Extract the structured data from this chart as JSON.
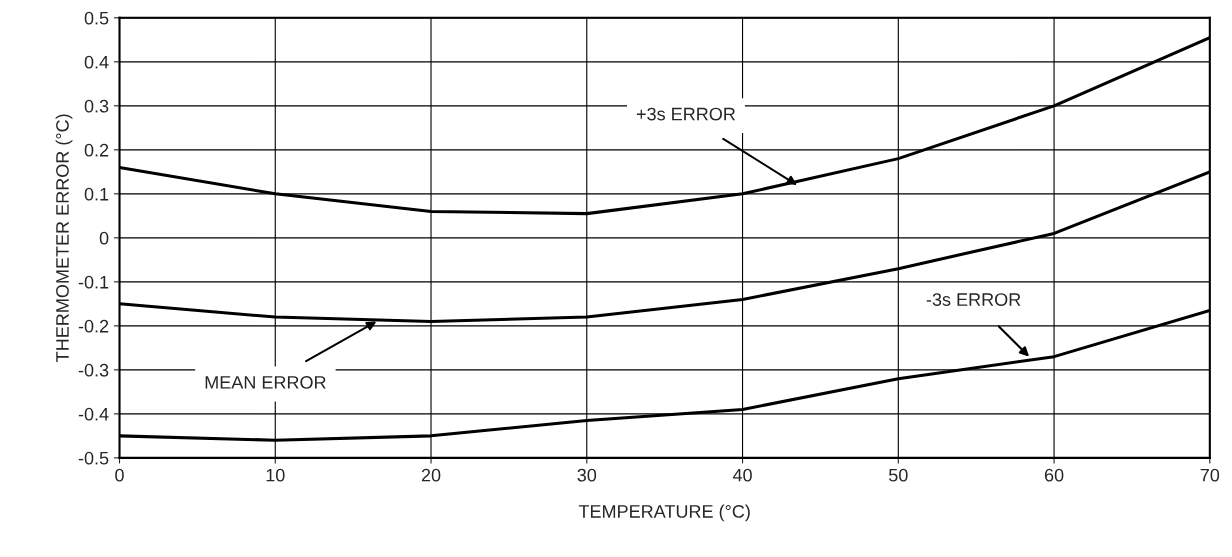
{
  "chart_data": {
    "type": "line",
    "xlabel": "TEMPERATURE (°C)",
    "ylabel": "THERMOMETER ERROR (°C)",
    "x": [
      0,
      10,
      20,
      30,
      40,
      50,
      60,
      70
    ],
    "series": [
      {
        "color": "#000000",
        "values": [
          0.16,
          0.1,
          0.06,
          0.055,
          0.1,
          0.18,
          0.3,
          0.455
        ]
      },
      {
        "color": "#000000",
        "values": [
          -0.15,
          -0.18,
          -0.19,
          -0.18,
          -0.14,
          -0.07,
          0.01,
          0.15
        ]
      },
      {
        "color": "#000000",
        "values": [
          -0.45,
          -0.46,
          -0.45,
          -0.415,
          -0.39,
          -0.32,
          -0.27,
          -0.165
        ]
      }
    ],
    "annotations": [
      {
        "text": "+3s ERROR",
        "x": 43.5,
        "y": 0.12
      },
      {
        "text": "MEAN ERROR",
        "x": 16.5,
        "y": -0.19
      },
      {
        "text": "-3s ERROR",
        "x": 58.4,
        "y": -0.27
      }
    ],
    "xlim": [
      0,
      70
    ],
    "xticks": [
      0,
      10,
      20,
      30,
      40,
      50,
      60,
      70
    ],
    "ylim": [
      -0.5,
      0.5
    ],
    "yticks": [
      -0.5,
      -0.4,
      -0.3,
      -0.2,
      -0.1,
      0,
      0.1,
      0.2,
      0.3,
      0.4,
      0.5
    ],
    "grid": true,
    "marker": "none",
    "line_style": "solid"
  }
}
